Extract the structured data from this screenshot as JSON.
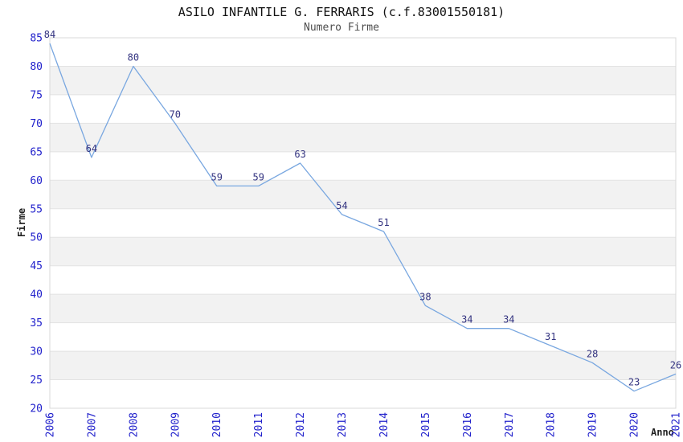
{
  "chart_data": {
    "type": "line",
    "title": "ASILO INFANTILE G. FERRARIS (c.f.83001550181)",
    "subtitle": "Numero Firme",
    "xlabel": "Anno",
    "ylabel": "Firme",
    "categories": [
      "2006",
      "2007",
      "2008",
      "2009",
      "2010",
      "2011",
      "2012",
      "2013",
      "2014",
      "2015",
      "2016",
      "2017",
      "2018",
      "2019",
      "2020",
      "2021"
    ],
    "values": [
      84,
      64,
      80,
      70,
      59,
      59,
      63,
      54,
      51,
      38,
      34,
      34,
      31,
      28,
      23,
      26
    ],
    "ylim": [
      20,
      85
    ],
    "ytick_step": 5,
    "grid": "horizontal-with-alternating-bands",
    "legend": "none",
    "colors": {
      "line": "#79a7e0",
      "tick_label": "#2222cc",
      "data_label": "#333380",
      "band_fill": "#f2f2f2",
      "grid_line": "#e3e3e3",
      "plot_border": "#d8d8d8",
      "title": "#111111",
      "subtitle": "#4d4d4d",
      "axis_title": "#222222"
    }
  }
}
